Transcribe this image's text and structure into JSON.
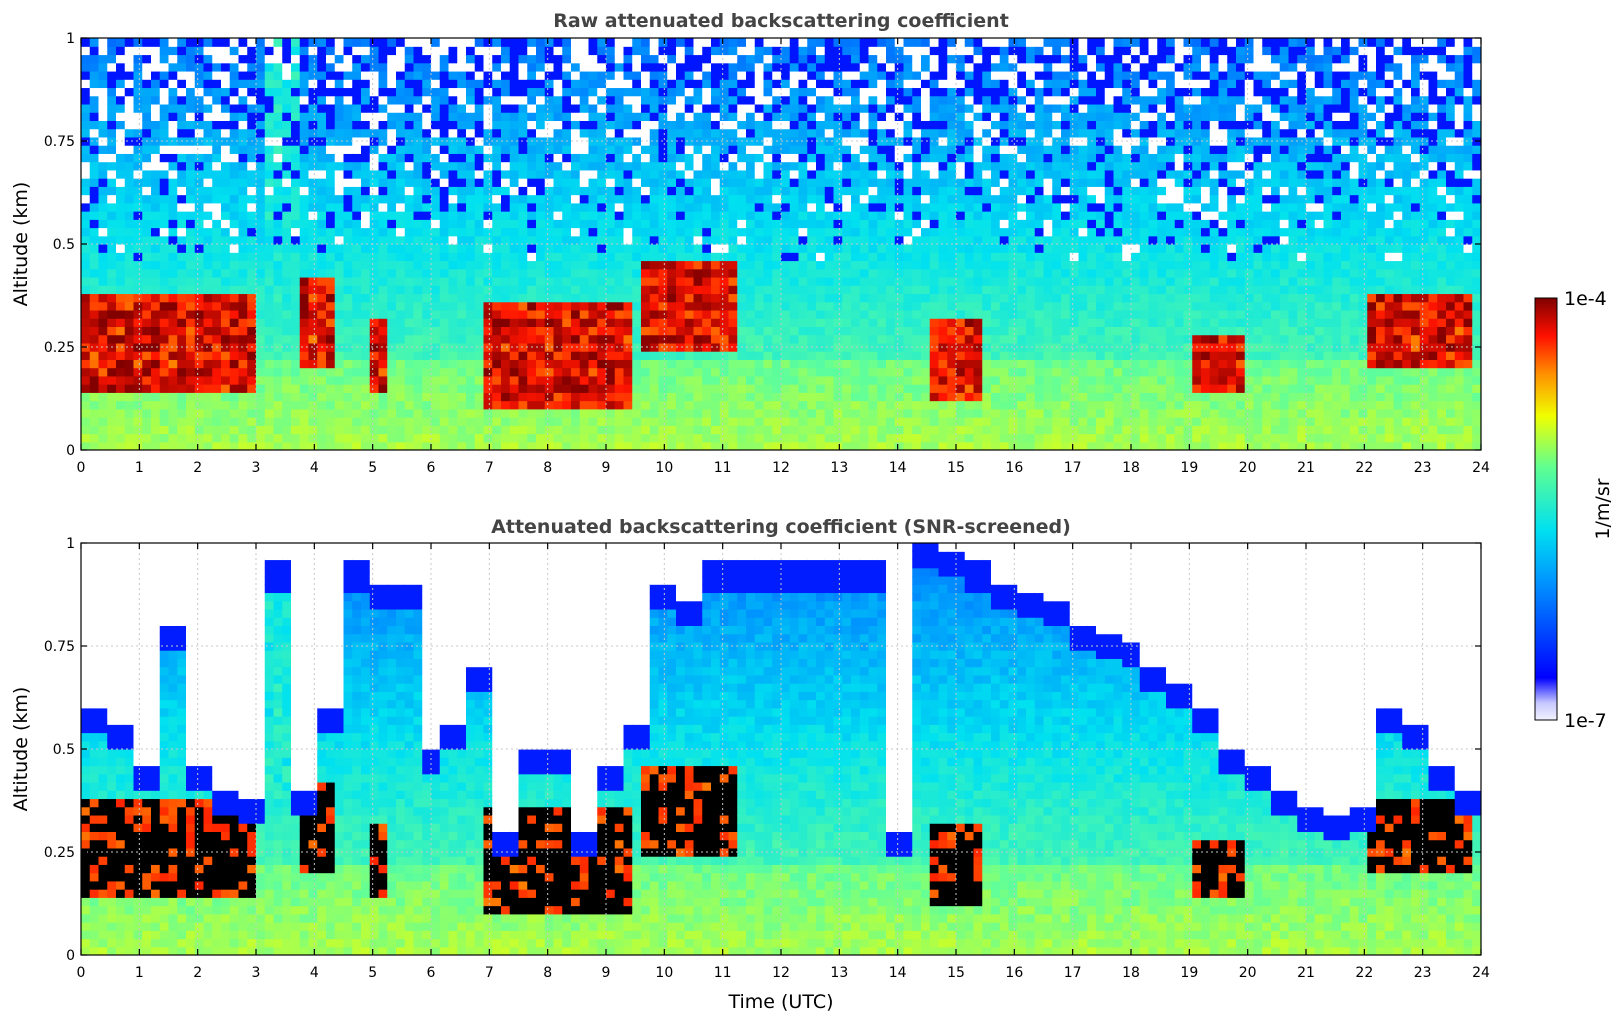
{
  "chart_data": [
    {
      "type": "heatmap",
      "title": "Raw attenuated backscattering coefficient",
      "xlabel": "",
      "ylabel": "Altitude (km)",
      "xlim": [
        0,
        24
      ],
      "ylim": [
        0,
        1
      ],
      "x_ticks": [
        "0",
        "1",
        "2",
        "3",
        "4",
        "5",
        "6",
        "7",
        "8",
        "9",
        "10",
        "11",
        "12",
        "13",
        "14",
        "15",
        "16",
        "17",
        "18",
        "19",
        "20",
        "21",
        "22",
        "23",
        "24"
      ],
      "y_ticks": [
        "0",
        "0.25",
        "0.5",
        "0.75",
        "1"
      ],
      "grid": true,
      "colorscale": "jet",
      "features": [
        {
          "t_start": 0.0,
          "t_end": 3.0,
          "alt_base": 0.15,
          "alt_top": 0.38,
          "level": "high"
        },
        {
          "t_start": 3.1,
          "t_end": 3.75,
          "alt_base": 0.0,
          "alt_top": 1.0,
          "level": "medium"
        },
        {
          "t_start": 3.75,
          "t_end": 4.3,
          "alt_base": 0.2,
          "alt_top": 0.42,
          "level": "high"
        },
        {
          "t_start": 4.95,
          "t_end": 5.3,
          "alt_base": 0.15,
          "alt_top": 0.32,
          "level": "high"
        },
        {
          "t_start": 6.9,
          "t_end": 9.5,
          "alt_base": 0.1,
          "alt_top": 0.35,
          "level": "high"
        },
        {
          "t_start": 9.6,
          "t_end": 11.2,
          "alt_base": 0.25,
          "alt_top": 0.45,
          "level": "high"
        },
        {
          "t_start": 14.5,
          "t_end": 15.5,
          "alt_base": 0.13,
          "alt_top": 0.32,
          "level": "high"
        },
        {
          "t_start": 19.0,
          "t_end": 19.9,
          "alt_base": 0.15,
          "alt_top": 0.27,
          "level": "high"
        },
        {
          "t_start": 22.0,
          "t_end": 23.9,
          "alt_base": 0.2,
          "alt_top": 0.38,
          "level": "high"
        }
      ]
    },
    {
      "type": "heatmap",
      "title": "Attenuated backscattering coefficient (SNR-screened)",
      "xlabel": "Time (UTC)",
      "ylabel": "Altitude (km)",
      "xlim": [
        0,
        24
      ],
      "ylim": [
        0,
        1
      ],
      "x_ticks": [
        "0",
        "1",
        "2",
        "3",
        "4",
        "5",
        "6",
        "7",
        "8",
        "9",
        "10",
        "11",
        "12",
        "13",
        "14",
        "15",
        "16",
        "17",
        "18",
        "19",
        "20",
        "21",
        "22",
        "23",
        "24"
      ],
      "y_ticks": [
        "0",
        "0.25",
        "0.5",
        "0.75",
        "1"
      ],
      "grid": true,
      "colorscale": "jet",
      "screened_top_km": [
        0.6,
        0.55,
        0.45,
        0.8,
        0.45,
        0.4,
        0.38,
        0.95,
        0.4,
        0.6,
        0.95,
        0.9,
        0.9,
        0.5,
        0.55,
        0.7,
        0.3,
        0.5,
        0.5,
        0.3,
        0.45,
        0.55,
        0.9,
        0.85,
        0.95,
        0.95,
        0.95,
        0.95,
        0.95,
        0.95,
        0.95,
        0.3,
        1.0,
        0.98,
        0.95,
        0.9,
        0.87,
        0.85,
        0.8,
        0.78,
        0.75,
        0.7,
        0.65,
        0.6,
        0.5,
        0.45,
        0.4,
        0.35,
        0.33,
        0.35,
        0.6,
        0.55,
        0.45,
        0.4
      ]
    }
  ],
  "colorbar": {
    "label": "1/m/sr",
    "max_label": "1e-4",
    "min_label": "1e-7"
  }
}
